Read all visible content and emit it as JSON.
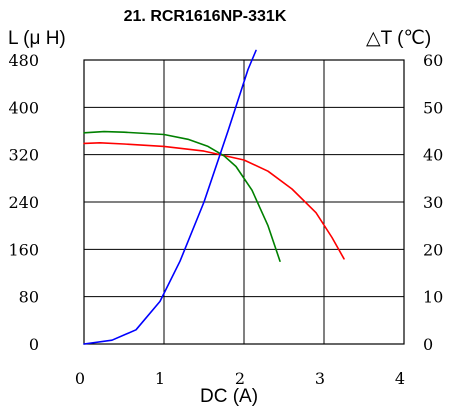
{
  "chart_data": {
    "type": "line",
    "title": "21. RCR1616NP-331K",
    "xlabel": "DC (A)",
    "ylabel_left": "L (μ H)",
    "ylabel_right": "△T (℃)",
    "xlim": [
      0,
      4
    ],
    "ylim_left": [
      0,
      480
    ],
    "ylim_right": [
      0,
      60
    ],
    "x_ticks": [
      "0",
      "1",
      "2",
      "3",
      "4"
    ],
    "y_ticks_left": [
      "0",
      "80",
      "160",
      "240",
      "320",
      "400",
      "480"
    ],
    "y_ticks_right": [
      "0",
      "10",
      "20",
      "30",
      "40",
      "50",
      "60"
    ],
    "grid": true,
    "series": [
      {
        "color": "#ff0000",
        "axis": "left",
        "x": [
          0.0,
          0.2,
          0.5,
          1.0,
          1.5,
          2.0,
          2.3,
          2.6,
          2.9,
          3.1,
          3.25
        ],
        "y": [
          339,
          340,
          338,
          334,
          326,
          311,
          292,
          262,
          222,
          180,
          144
        ]
      },
      {
        "color": "#008000",
        "axis": "left",
        "x": [
          0.0,
          0.25,
          0.5,
          1.0,
          1.3,
          1.55,
          1.75,
          1.9,
          2.1,
          2.3,
          2.45
        ],
        "y": [
          357,
          359,
          358,
          354,
          346,
          334,
          318,
          300,
          260,
          200,
          140
        ]
      },
      {
        "color": "#0000ff",
        "axis": "right",
        "x": [
          0.0,
          0.35,
          0.65,
          0.95,
          1.2,
          1.5,
          1.8,
          2.05,
          2.15
        ],
        "y": [
          0,
          0.8,
          3,
          9,
          17.5,
          30,
          45,
          58,
          62
        ]
      }
    ]
  }
}
